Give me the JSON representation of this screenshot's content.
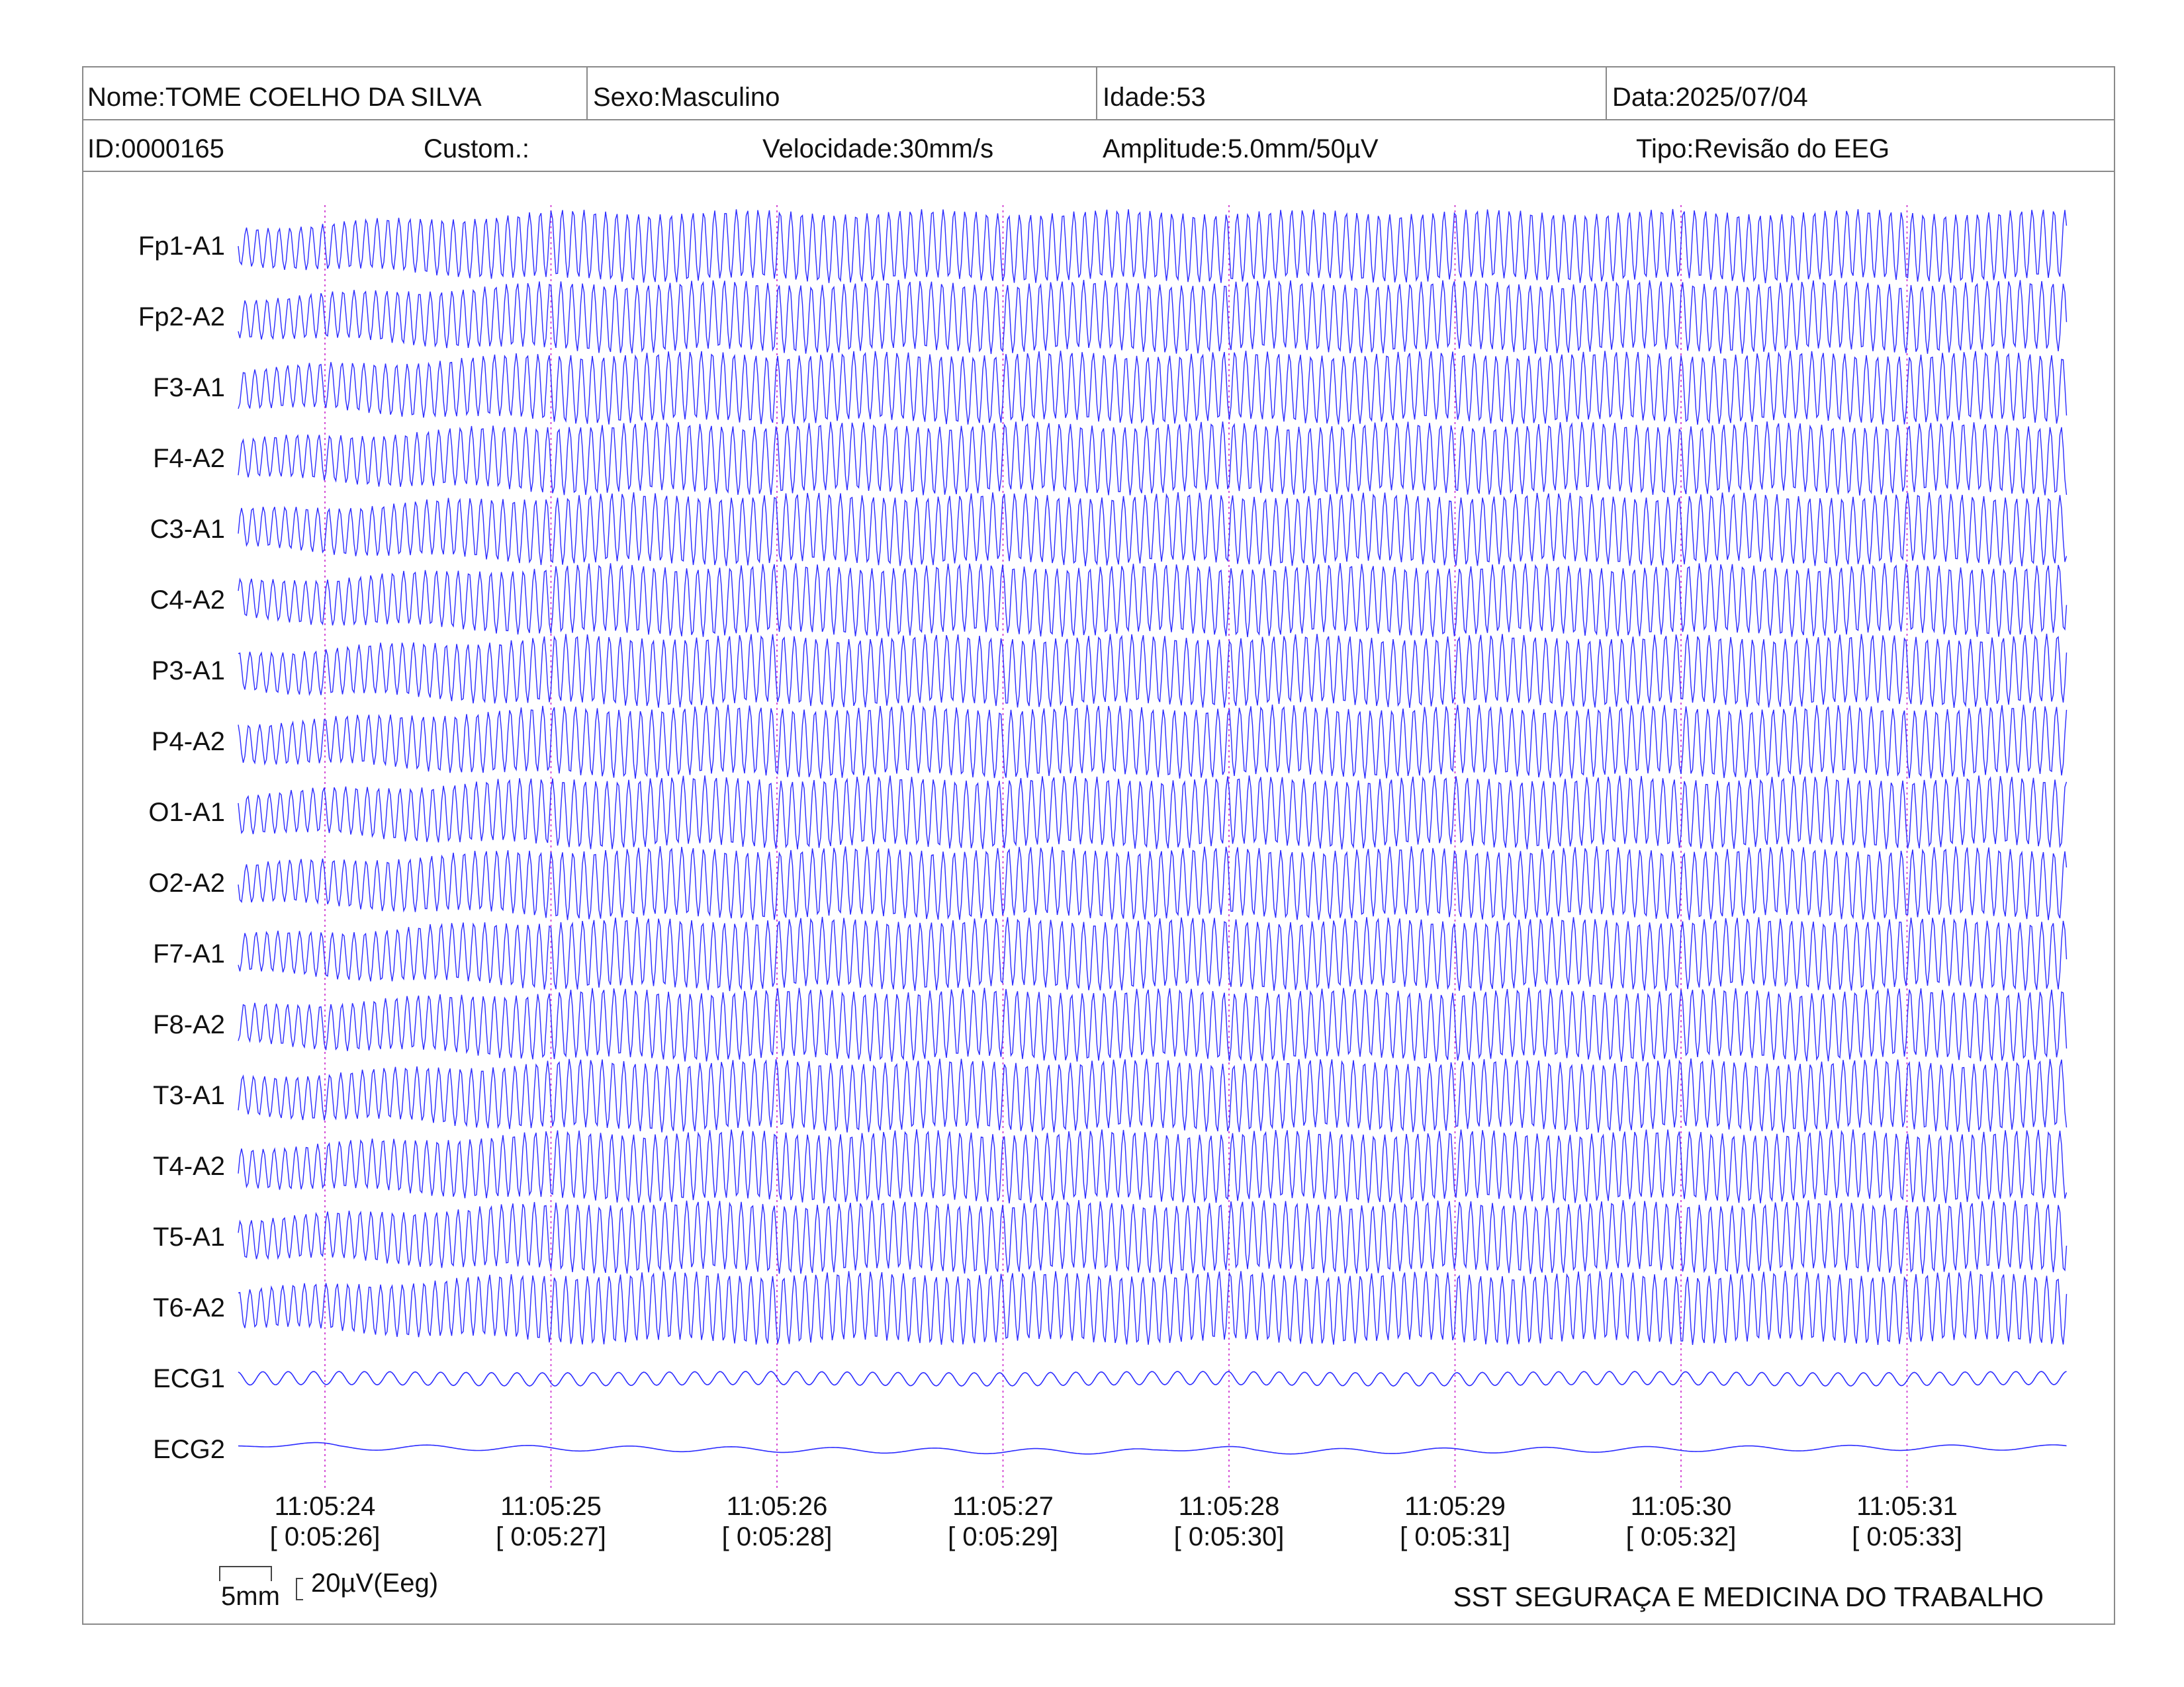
{
  "header": {
    "row1": {
      "nome": "Nome:TOME COELHO DA SILVA",
      "sexo": "Sexo:Masculino",
      "idade": "Idade:53",
      "data": "Data:2025/07/04"
    },
    "row2": {
      "id": "ID:0000165",
      "custom": "Custom.:",
      "velocidade": "Velocidade:30mm/s",
      "amplitude": "Amplitude:5.0mm/50µV",
      "tipo": "Tipo:Revisão do EEG"
    }
  },
  "channels": [
    "Fp1-A1",
    "Fp2-A2",
    "F3-A1",
    "F4-A2",
    "C3-A1",
    "C4-A2",
    "P3-A1",
    "P4-A2",
    "O1-A1",
    "O2-A2",
    "F7-A1",
    "F8-A2",
    "T3-A1",
    "T4-A2",
    "T5-A1",
    "T6-A2",
    "ECG1",
    "ECG2"
  ],
  "time_markers": [
    {
      "clock": "11:05:24",
      "elapsed": "[ 0:05:26]"
    },
    {
      "clock": "11:05:25",
      "elapsed": "[ 0:05:27]"
    },
    {
      "clock": "11:05:26",
      "elapsed": "[ 0:05:28]"
    },
    {
      "clock": "11:05:27",
      "elapsed": "[ 0:05:29]"
    },
    {
      "clock": "11:05:28",
      "elapsed": "[ 0:05:30]"
    },
    {
      "clock": "11:05:29",
      "elapsed": "[ 0:05:31]"
    },
    {
      "clock": "11:05:30",
      "elapsed": "[ 0:05:32]"
    },
    {
      "clock": "11:05:31",
      "elapsed": "[ 0:05:33]"
    }
  ],
  "scale": {
    "time_label": "5mm",
    "amp_label": "20µV(Eeg)"
  },
  "footer": {
    "company": "SST SEGURAÇA E MEDICINA DO TRABALHO"
  },
  "colors": {
    "trace": "#2b2bff",
    "marker": "#d64fd6",
    "border": "#8a8a8a"
  }
}
